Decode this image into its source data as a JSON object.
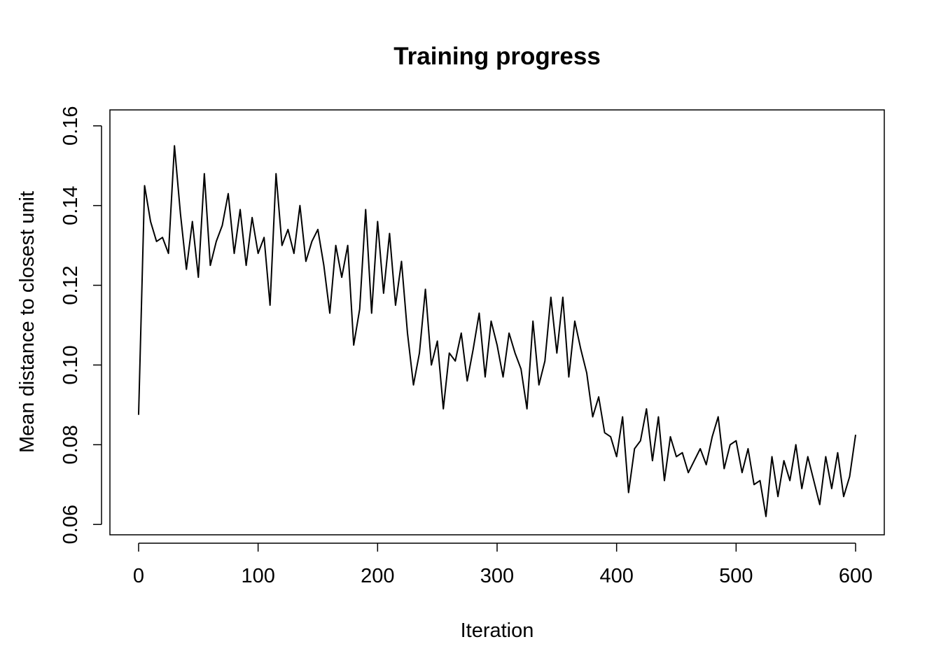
{
  "chart_data": {
    "type": "line",
    "title": "Training progress",
    "x_label": "Iteration",
    "y_label": "Mean distance to closest unit",
    "x": [
      0,
      5,
      10,
      15,
      20,
      25,
      30,
      35,
      40,
      45,
      50,
      55,
      60,
      65,
      70,
      75,
      80,
      85,
      90,
      95,
      100,
      105,
      110,
      115,
      120,
      125,
      130,
      135,
      140,
      145,
      150,
      155,
      160,
      165,
      170,
      175,
      180,
      185,
      190,
      195,
      200,
      205,
      210,
      215,
      220,
      225,
      230,
      235,
      240,
      245,
      250,
      255,
      260,
      265,
      270,
      275,
      280,
      285,
      290,
      295,
      300,
      305,
      310,
      315,
      320,
      325,
      330,
      335,
      340,
      345,
      350,
      355,
      360,
      365,
      370,
      375,
      380,
      385,
      390,
      395,
      400,
      405,
      410,
      415,
      420,
      425,
      430,
      435,
      440,
      445,
      450,
      455,
      460,
      465,
      470,
      475,
      480,
      485,
      490,
      495,
      500,
      505,
      510,
      515,
      520,
      525,
      530,
      535,
      540,
      545,
      550,
      555,
      560,
      565,
      570,
      575,
      580,
      585,
      590,
      595,
      600
    ],
    "series": [
      {
        "name": "Mean distance",
        "color": "#000000",
        "values": [
          0.0875,
          0.145,
          0.136,
          0.131,
          0.132,
          0.128,
          0.155,
          0.138,
          0.124,
          0.136,
          0.122,
          0.148,
          0.125,
          0.131,
          0.135,
          0.143,
          0.128,
          0.139,
          0.125,
          0.137,
          0.128,
          0.132,
          0.115,
          0.148,
          0.13,
          0.134,
          0.128,
          0.14,
          0.126,
          0.131,
          0.134,
          0.125,
          0.113,
          0.13,
          0.122,
          0.13,
          0.105,
          0.114,
          0.139,
          0.113,
          0.136,
          0.118,
          0.133,
          0.115,
          0.126,
          0.108,
          0.095,
          0.103,
          0.119,
          0.1,
          0.106,
          0.089,
          0.103,
          0.101,
          0.108,
          0.096,
          0.104,
          0.113,
          0.097,
          0.111,
          0.105,
          0.097,
          0.108,
          0.103,
          0.099,
          0.089,
          0.111,
          0.095,
          0.101,
          0.117,
          0.103,
          0.117,
          0.097,
          0.111,
          0.104,
          0.098,
          0.087,
          0.092,
          0.083,
          0.082,
          0.077,
          0.087,
          0.068,
          0.079,
          0.081,
          0.089,
          0.076,
          0.087,
          0.071,
          0.082,
          0.077,
          0.078,
          0.073,
          0.076,
          0.079,
          0.075,
          0.082,
          0.087,
          0.074,
          0.08,
          0.081,
          0.073,
          0.079,
          0.07,
          0.071,
          0.062,
          0.077,
          0.067,
          0.076,
          0.071,
          0.08,
          0.069,
          0.077,
          0.071,
          0.065,
          0.077,
          0.069,
          0.078,
          0.067,
          0.072,
          0.0825
        ]
      }
    ],
    "xlim": [
      -24,
      624
    ],
    "ylim": [
      0.0574,
      0.164
    ],
    "xticks": [
      0,
      100,
      200,
      300,
      400,
      500,
      600
    ],
    "yticks": [
      0.06,
      0.08,
      {
        "value": 0.1,
        "label": "0.10"
      },
      0.12,
      0.14,
      0.16
    ]
  }
}
